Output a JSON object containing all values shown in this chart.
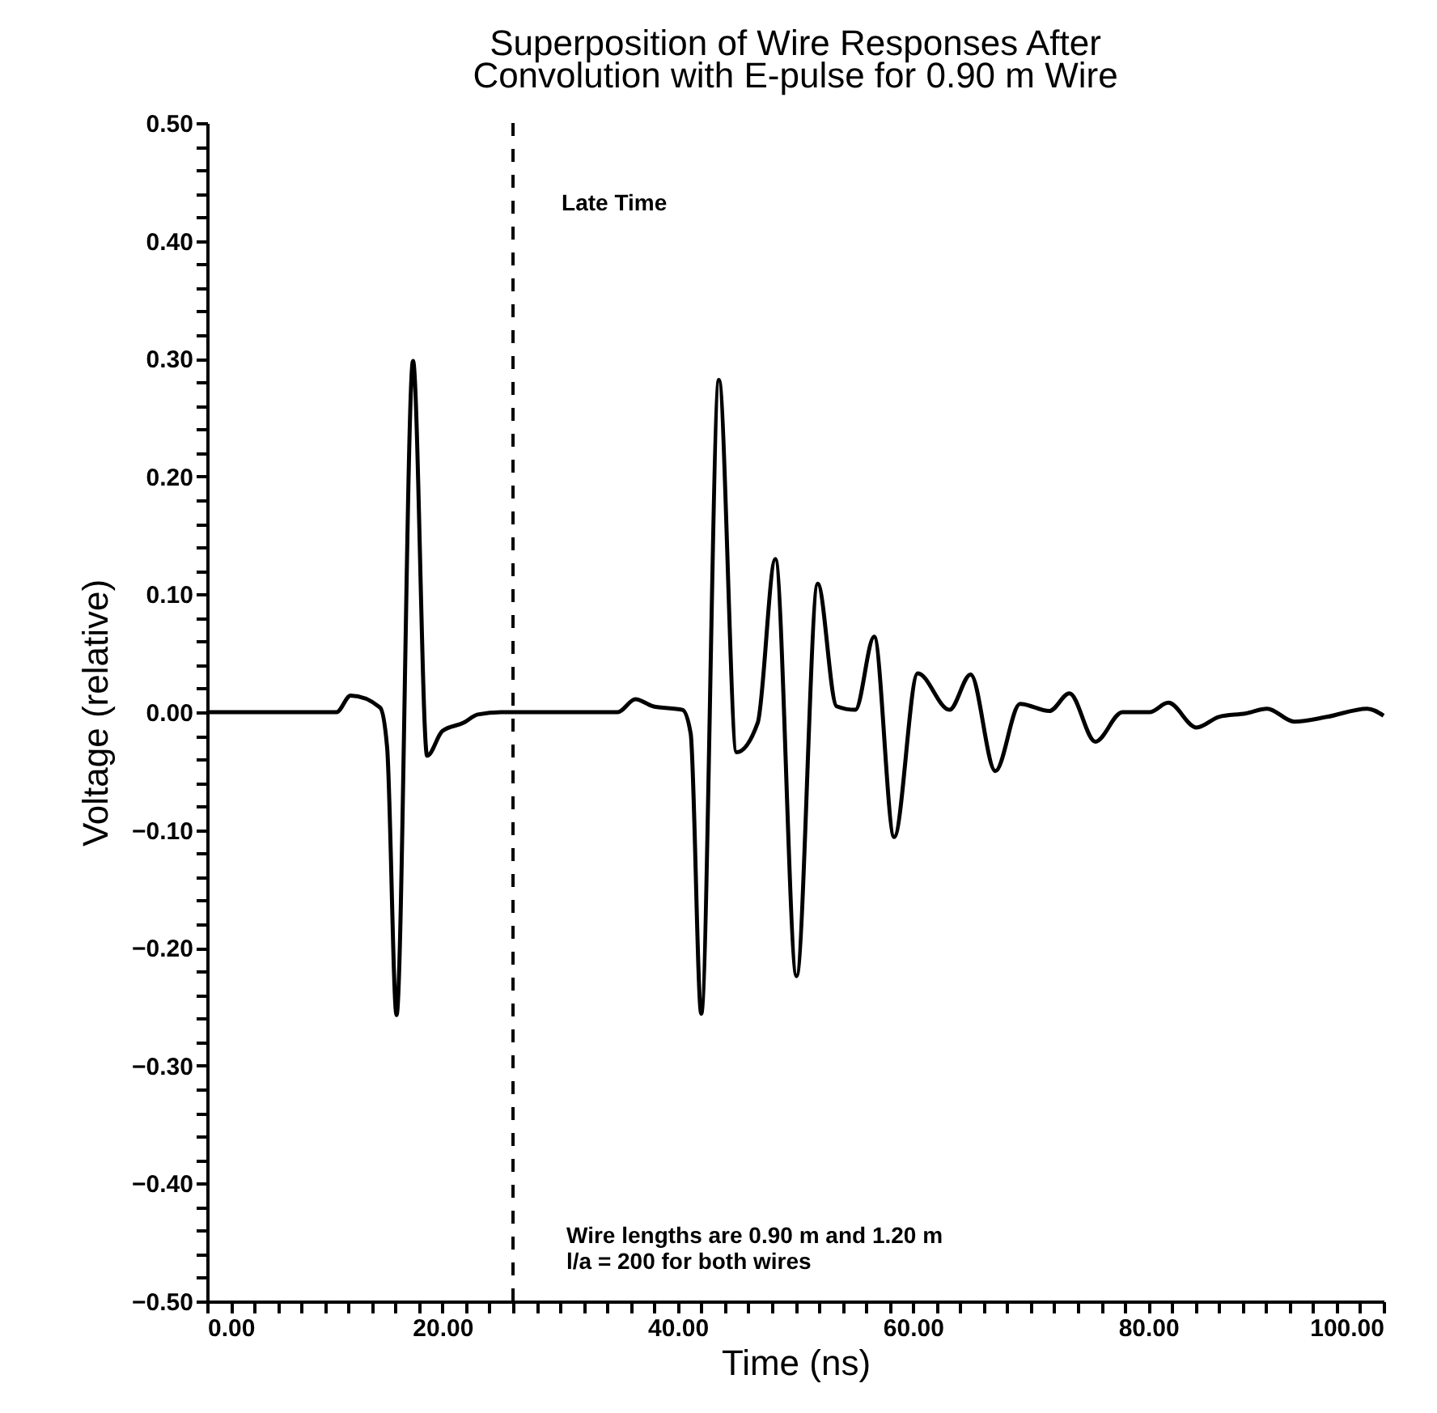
{
  "chart_data": {
    "type": "line",
    "title": "Superposition of Wire Responses After\nConvolution with E-pulse for 0.90 m Wire",
    "xlabel": "Time  (ns)",
    "ylabel": "Voltage  (relative)",
    "series": [
      {
        "color": "#000000",
        "x": [
          0,
          11,
          12.2,
          14.7,
          15.3,
          16.1,
          17.5,
          18.7,
          20.0,
          21.8,
          23.0,
          25.0,
          30.0,
          34.9,
          36.4,
          37.9,
          40.4,
          41.1,
          42.0,
          43.5,
          45.0,
          46.8,
          48.3,
          50.1,
          51.9,
          53.5,
          55.1,
          56.7,
          58.4,
          60.4,
          63.1,
          64.9,
          67.0,
          69.1,
          71.6,
          73.3,
          75.5,
          77.8,
          80.1,
          81.7,
          84.1,
          86.0,
          88.3,
          90.1,
          92.4,
          95.2,
          98.6,
          100
        ],
        "values": [
          0,
          0,
          0.014,
          0.004,
          -0.03,
          -0.257,
          0.298,
          -0.037,
          -0.016,
          -0.009,
          -0.002,
          0,
          0,
          0,
          0.011,
          0.005,
          0.002,
          -0.018,
          -0.256,
          0.282,
          -0.034,
          -0.009,
          0.13,
          -0.224,
          0.109,
          0.005,
          0.002,
          0.064,
          -0.106,
          0.033,
          0.002,
          0.032,
          -0.05,
          0.007,
          0.001,
          0.016,
          -0.025,
          0,
          0,
          0.008,
          -0.013,
          -0.004,
          -0.001,
          0.003,
          -0.008,
          -0.004,
          0.003,
          -0.003
        ]
      }
    ],
    "xlim": [
      0,
      100
    ],
    "ylim": [
      -0.5,
      0.5
    ],
    "xticks": [
      {
        "value": 0,
        "label": "0.00"
      },
      {
        "value": 2,
        "label": null
      },
      {
        "value": 4,
        "label": null
      },
      {
        "value": 6,
        "label": null
      },
      {
        "value": 8,
        "label": null
      },
      {
        "value": 10,
        "label": null
      },
      {
        "value": 12,
        "label": null
      },
      {
        "value": 14,
        "label": null
      },
      {
        "value": 16,
        "label": null
      },
      {
        "value": 18,
        "label": null
      },
      {
        "value": 20,
        "label": "20.00"
      },
      {
        "value": 22,
        "label": null
      },
      {
        "value": 24,
        "label": null
      },
      {
        "value": 26,
        "label": null
      },
      {
        "value": 28,
        "label": null
      },
      {
        "value": 30,
        "label": null
      },
      {
        "value": 32,
        "label": null
      },
      {
        "value": 34,
        "label": null
      },
      {
        "value": 36,
        "label": null
      },
      {
        "value": 38,
        "label": null
      },
      {
        "value": 40,
        "label": "40.00"
      },
      {
        "value": 42,
        "label": null
      },
      {
        "value": 44,
        "label": null
      },
      {
        "value": 46,
        "label": null
      },
      {
        "value": 48,
        "label": null
      },
      {
        "value": 50,
        "label": null
      },
      {
        "value": 52,
        "label": null
      },
      {
        "value": 54,
        "label": null
      },
      {
        "value": 56,
        "label": null
      },
      {
        "value": 58,
        "label": null
      },
      {
        "value": 60,
        "label": "60.00"
      },
      {
        "value": 62,
        "label": null
      },
      {
        "value": 64,
        "label": null
      },
      {
        "value": 66,
        "label": null
      },
      {
        "value": 68,
        "label": null
      },
      {
        "value": 70,
        "label": null
      },
      {
        "value": 72,
        "label": null
      },
      {
        "value": 74,
        "label": null
      },
      {
        "value": 76,
        "label": null
      },
      {
        "value": 78,
        "label": null
      },
      {
        "value": 80,
        "label": "80.00"
      },
      {
        "value": 82,
        "label": null
      },
      {
        "value": 84,
        "label": null
      },
      {
        "value": 86,
        "label": null
      },
      {
        "value": 88,
        "label": null
      },
      {
        "value": 90,
        "label": null
      },
      {
        "value": 92,
        "label": null
      },
      {
        "value": 94,
        "label": null
      },
      {
        "value": 96,
        "label": null
      },
      {
        "value": 98,
        "label": null
      },
      {
        "value": 100,
        "label": "100.00"
      }
    ],
    "yticks": [
      {
        "value": -0.5,
        "label": "−0.50"
      },
      {
        "value": -0.48,
        "label": null
      },
      {
        "value": -0.46,
        "label": null
      },
      {
        "value": -0.44,
        "label": null
      },
      {
        "value": -0.42,
        "label": null
      },
      {
        "value": -0.4,
        "label": "−0.40"
      },
      {
        "value": -0.38,
        "label": null
      },
      {
        "value": -0.36,
        "label": null
      },
      {
        "value": -0.34,
        "label": null
      },
      {
        "value": -0.32,
        "label": null
      },
      {
        "value": -0.3,
        "label": "−0.30"
      },
      {
        "value": -0.28,
        "label": null
      },
      {
        "value": -0.26,
        "label": null
      },
      {
        "value": -0.24,
        "label": null
      },
      {
        "value": -0.22,
        "label": null
      },
      {
        "value": -0.2,
        "label": "−0.20"
      },
      {
        "value": -0.18,
        "label": null
      },
      {
        "value": -0.16,
        "label": null
      },
      {
        "value": -0.14,
        "label": null
      },
      {
        "value": -0.12,
        "label": null
      },
      {
        "value": -0.1,
        "label": "−0.10"
      },
      {
        "value": -0.08,
        "label": null
      },
      {
        "value": -0.06,
        "label": null
      },
      {
        "value": -0.04,
        "label": null
      },
      {
        "value": -0.02,
        "label": null
      },
      {
        "value": 0,
        "label": "0.00"
      },
      {
        "value": 0.02,
        "label": null
      },
      {
        "value": 0.04,
        "label": null
      },
      {
        "value": 0.06,
        "label": null
      },
      {
        "value": 0.08,
        "label": null
      },
      {
        "value": 0.1,
        "label": "0.10"
      },
      {
        "value": 0.12,
        "label": null
      },
      {
        "value": 0.14,
        "label": null
      },
      {
        "value": 0.16,
        "label": null
      },
      {
        "value": 0.18,
        "label": null
      },
      {
        "value": 0.2,
        "label": "0.20"
      },
      {
        "value": 0.22,
        "label": null
      },
      {
        "value": 0.24,
        "label": null
      },
      {
        "value": 0.26,
        "label": null
      },
      {
        "value": 0.28,
        "label": null
      },
      {
        "value": 0.3,
        "label": "0.30"
      },
      {
        "value": 0.32,
        "label": null
      },
      {
        "value": 0.34,
        "label": null
      },
      {
        "value": 0.36,
        "label": null
      },
      {
        "value": 0.38,
        "label": null
      },
      {
        "value": 0.4,
        "label": "0.40"
      },
      {
        "value": 0.42,
        "label": null
      },
      {
        "value": 0.44,
        "label": null
      },
      {
        "value": 0.46,
        "label": null
      },
      {
        "value": 0.48,
        "label": null
      },
      {
        "value": 0.5,
        "label": "0.50"
      }
    ],
    "ref_lines": [
      {
        "axis": "x",
        "value": 26,
        "label": "Late Time",
        "color": "#000000",
        "line_style": "dashed"
      }
    ],
    "annotations": [
      "Wire lengths are 0.90 m and 1.20 m",
      "l/a = 200 for both wires"
    ],
    "grid": false,
    "line_style": "solid",
    "marker": "none"
  }
}
